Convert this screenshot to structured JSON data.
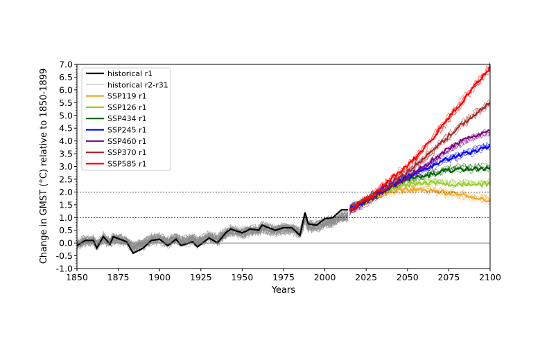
{
  "chart_data": {
    "type": "line",
    "title": "",
    "xlabel": "Years",
    "ylabel": "Change in GMST (°C) relative to 1850-1899",
    "xlim": [
      1850,
      2100
    ],
    "ylim": [
      -1.0,
      7.0
    ],
    "xticks": [
      1850,
      1875,
      1900,
      1925,
      1950,
      1975,
      2000,
      2025,
      2050,
      2075,
      2100
    ],
    "yticks": [
      -1.0,
      -0.5,
      0.0,
      0.5,
      1.0,
      1.5,
      2.0,
      2.5,
      3.0,
      3.5,
      4.0,
      4.5,
      5.0,
      5.5,
      6.0,
      6.5,
      7.0
    ],
    "reference_lines": [
      {
        "y": 0.0,
        "style": "solid",
        "color": "#808080"
      },
      {
        "y": 1.0,
        "style": "dotted",
        "color": "#000000"
      },
      {
        "y": 2.0,
        "style": "dotted",
        "color": "#000000"
      }
    ],
    "grid": false,
    "legend_position": "top-left",
    "legend": [
      {
        "label": "historical r1",
        "color": "#000000"
      },
      {
        "label": "historical r2-r31",
        "color": "#bbbbbb"
      },
      {
        "label": "SSP119 r1",
        "color": "#f5a623"
      },
      {
        "label": "SSP126 r1",
        "color": "#9acd32"
      },
      {
        "label": "SSP434 r1",
        "color": "#006400"
      },
      {
        "label": "SSP245 r1",
        "color": "#0000ff"
      },
      {
        "label": "SSP460 r1",
        "color": "#800080"
      },
      {
        "label": "SSP370 r1",
        "color": "#a52a2a"
      },
      {
        "label": "SSP585 r1",
        "color": "#ff0000"
      }
    ],
    "series": [
      {
        "name": "historical r1",
        "color": "#000000",
        "x": [
          1850,
          1855,
          1860,
          1862,
          1866,
          1870,
          1872,
          1880,
          1884,
          1890,
          1895,
          1900,
          1905,
          1910,
          1913,
          1920,
          1923,
          1930,
          1935,
          1940,
          1943,
          1950,
          1955,
          1960,
          1962,
          1970,
          1975,
          1980,
          1985,
          1988,
          1990,
          1995,
          2000,
          2005,
          2010,
          2014
        ],
        "y": [
          -0.1,
          0.1,
          0.1,
          -0.2,
          0.25,
          -0.05,
          0.25,
          0.05,
          -0.4,
          -0.2,
          0.1,
          0.15,
          -0.1,
          0.15,
          -0.1,
          0.05,
          -0.15,
          0.2,
          0.0,
          0.4,
          0.55,
          0.4,
          0.55,
          0.5,
          0.7,
          0.5,
          0.6,
          0.6,
          0.3,
          1.2,
          0.75,
          0.7,
          0.95,
          1.0,
          1.3,
          1.3
        ]
      },
      {
        "name": "SSP119 r1",
        "color": "#f5a623",
        "x": [
          2015,
          2030,
          2040,
          2050,
          2060,
          2070,
          2080,
          2090,
          2100
        ],
        "y": [
          1.3,
          1.8,
          2.0,
          2.1,
          2.1,
          2.0,
          1.9,
          1.8,
          1.7
        ]
      },
      {
        "name": "SSP126 r1",
        "color": "#9acd32",
        "x": [
          2015,
          2030,
          2040,
          2050,
          2060,
          2070,
          2080,
          2090,
          2100
        ],
        "y": [
          1.3,
          1.8,
          2.1,
          2.3,
          2.35,
          2.35,
          2.3,
          2.3,
          2.3
        ]
      },
      {
        "name": "SSP434 r1",
        "color": "#006400",
        "x": [
          2015,
          2030,
          2040,
          2050,
          2060,
          2070,
          2080,
          2090,
          2100
        ],
        "y": [
          1.3,
          1.8,
          2.2,
          2.5,
          2.6,
          2.8,
          2.9,
          2.9,
          2.95
        ]
      },
      {
        "name": "SSP245 r1",
        "color": "#0000ff",
        "x": [
          2015,
          2030,
          2040,
          2050,
          2060,
          2070,
          2080,
          2090,
          2100
        ],
        "y": [
          1.3,
          1.9,
          2.3,
          2.6,
          2.9,
          3.2,
          3.4,
          3.6,
          3.8
        ]
      },
      {
        "name": "SSP460 r1",
        "color": "#800080",
        "x": [
          2015,
          2030,
          2040,
          2050,
          2060,
          2070,
          2080,
          2090,
          2100
        ],
        "y": [
          1.3,
          1.8,
          2.2,
          2.6,
          3.0,
          3.5,
          3.9,
          4.2,
          4.4
        ]
      },
      {
        "name": "SSP370 r1",
        "color": "#a52a2a",
        "x": [
          2015,
          2030,
          2040,
          2050,
          2060,
          2070,
          2080,
          2090,
          2100
        ],
        "y": [
          1.3,
          1.9,
          2.3,
          2.8,
          3.3,
          3.9,
          4.5,
          5.0,
          5.5
        ]
      },
      {
        "name": "SSP585 r1",
        "color": "#ff0000",
        "x": [
          2015,
          2030,
          2040,
          2050,
          2060,
          2070,
          2080,
          2090,
          2100
        ],
        "y": [
          1.3,
          1.9,
          2.5,
          3.0,
          3.7,
          4.5,
          5.3,
          6.1,
          6.9
        ]
      }
    ]
  }
}
